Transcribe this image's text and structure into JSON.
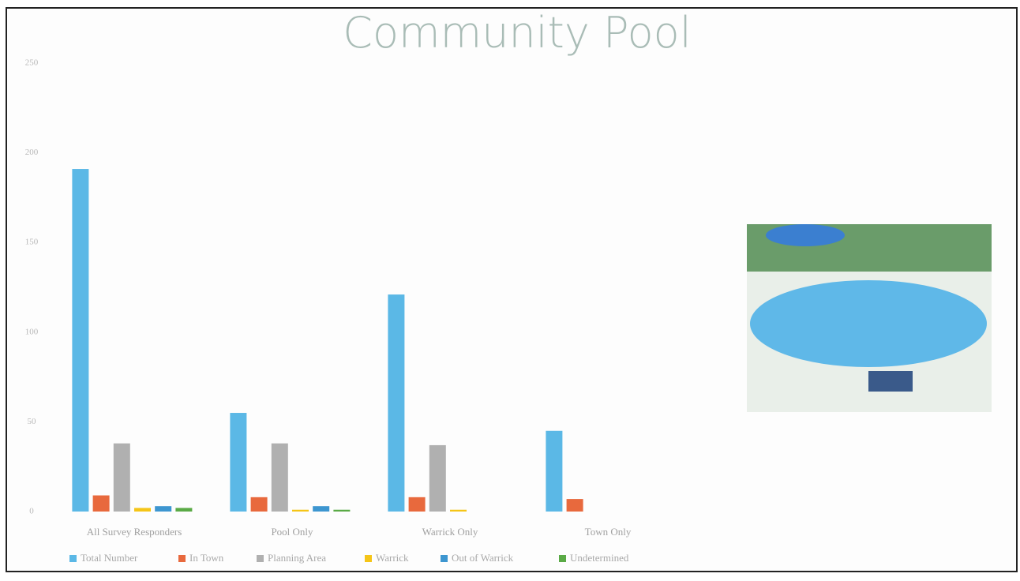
{
  "chart_data": {
    "type": "bar",
    "title": "Community Pool",
    "categories": [
      "All Survey Responders",
      "Pool Only",
      "Warrick Only",
      "Town Only"
    ],
    "series": [
      {
        "name": "Total Number",
        "color": "#5bb8e6",
        "values": [
          191,
          55,
          121,
          45
        ]
      },
      {
        "name": "In Town",
        "color": "#e8693d",
        "values": [
          9,
          8,
          8,
          7
        ]
      },
      {
        "name": "Planning Area",
        "color": "#b0b0b0",
        "values": [
          38,
          38,
          37,
          0
        ]
      },
      {
        "name": "Warrick",
        "color": "#f5c518",
        "values": [
          2,
          1,
          1,
          0
        ]
      },
      {
        "name": "Out of Warrick",
        "color": "#3d96d0",
        "values": [
          3,
          3,
          0,
          0
        ]
      },
      {
        "name": "Undetermined",
        "color": "#5aaa46",
        "values": [
          2,
          1,
          0,
          0
        ]
      }
    ],
    "ylim": [
      0,
      250
    ],
    "yticks": [
      0,
      50,
      100,
      150,
      200,
      250
    ],
    "grid": false
  }
}
